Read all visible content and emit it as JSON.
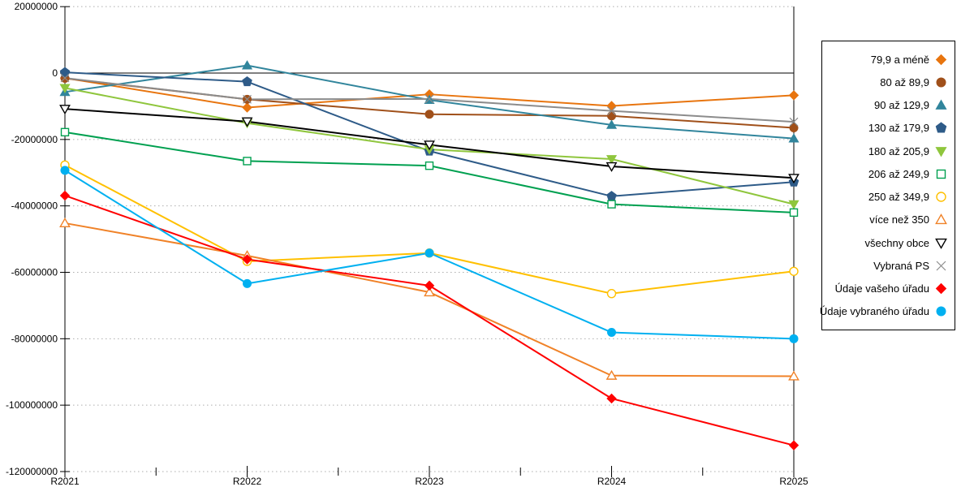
{
  "chart_data": {
    "type": "line",
    "title": "",
    "xlabel": "",
    "ylabel": "",
    "categories": [
      "R2021",
      "R2022",
      "R2023",
      "R2024",
      "R2025"
    ],
    "ylim": [
      -120000000,
      20000000
    ],
    "ytick_step": 20000000,
    "ytick_labels": [
      "20000000",
      "0",
      "-20000000",
      "-40000000",
      "-60000000",
      "-80000000",
      "-100000000",
      "-120000000"
    ],
    "ytick_values": [
      20000000,
      0,
      -20000000,
      -40000000,
      -60000000,
      -80000000,
      -100000000,
      -120000000
    ],
    "grid": "horizontal-dotted",
    "legend_position": "right",
    "series": [
      {
        "name": "79,9 a méně",
        "color": "#E8750F",
        "marker": "diamond",
        "fill": "filled",
        "values": [
          -1500000,
          -10400000,
          -6400000,
          -9900000,
          -6700000
        ]
      },
      {
        "name": "80 až 89,9",
        "color": "#A0501A",
        "marker": "circle",
        "fill": "filled",
        "values": [
          -1600000,
          -7900000,
          -12400000,
          -12900000,
          -16500000
        ]
      },
      {
        "name": "90 až 129,9",
        "color": "#31859C",
        "marker": "triangle-up",
        "fill": "filled",
        "values": [
          -5700000,
          2300000,
          -8100000,
          -15600000,
          -19700000
        ]
      },
      {
        "name": "130 až 179,9",
        "color": "#2E5B88",
        "marker": "pentagon",
        "fill": "filled",
        "values": [
          200000,
          -2600000,
          -23500000,
          -37100000,
          -32800000
        ]
      },
      {
        "name": "180 až 205,9",
        "color": "#8FC63D",
        "marker": "triangle-down",
        "fill": "filled",
        "values": [
          -4500000,
          -15100000,
          -23000000,
          -25900000,
          -39500000
        ]
      },
      {
        "name": "206 až 249,9",
        "color": "#00A050",
        "marker": "square",
        "fill": "hollow",
        "values": [
          -17800000,
          -26500000,
          -27900000,
          -39500000,
          -42000000
        ]
      },
      {
        "name": "250 až 349,9",
        "color": "#FFC000",
        "marker": "circle",
        "fill": "hollow",
        "values": [
          -27700000,
          -56700000,
          -54200000,
          -66400000,
          -59700000
        ]
      },
      {
        "name": "více než 350",
        "color": "#F08228",
        "marker": "triangle-up",
        "fill": "hollow",
        "values": [
          -45200000,
          -55000000,
          -66000000,
          -91100000,
          -91300000
        ]
      },
      {
        "name": "všechny obce",
        "color": "#000000",
        "marker": "triangle-down",
        "fill": "hollow",
        "values": [
          -10800000,
          -14600000,
          -21600000,
          -28100000,
          -31600000
        ]
      },
      {
        "name": "Vybraná PS",
        "color": "#8C8C8C",
        "marker": "x-cross",
        "fill": "stroke",
        "values": [
          -1500000,
          -7900000,
          -7800000,
          -11400000,
          -14700000
        ]
      },
      {
        "name": "Údaje vašeho úřadu",
        "color": "#FF0000",
        "marker": "diamond",
        "fill": "filled",
        "values": [
          -36900000,
          -56100000,
          -64000000,
          -98000000,
          -112100000
        ]
      },
      {
        "name": "Údaje vybraného úřadu",
        "color": "#00B0F0",
        "marker": "circle",
        "fill": "filled",
        "values": [
          -29300000,
          -63400000,
          -54200000,
          -78100000,
          -80000000
        ]
      }
    ],
    "colors": {
      "axis": "#000000",
      "gridline": "#ADADAD",
      "background": "#FFFFFF"
    }
  }
}
